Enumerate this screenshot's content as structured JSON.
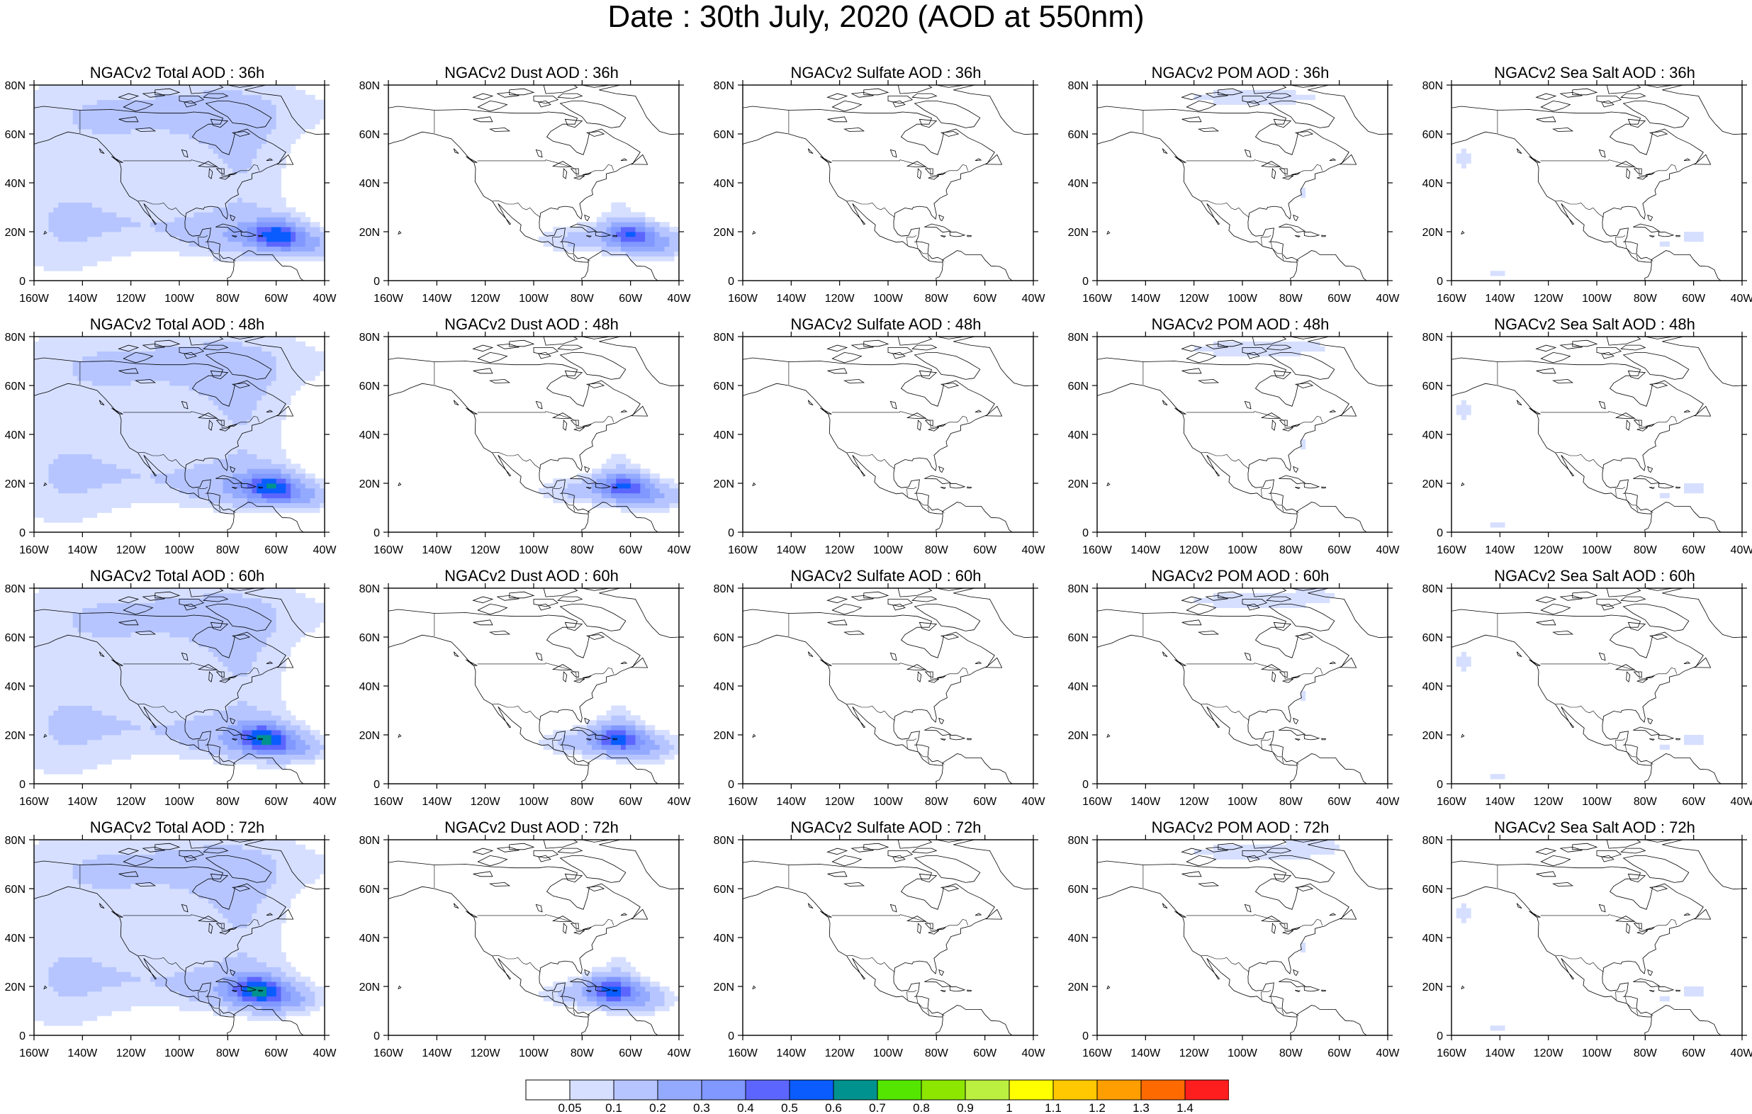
{
  "title": "Date : 30th July, 2020 (AOD at 550nm)",
  "x_ticks": [
    "160W",
    "140W",
    "120W",
    "100W",
    "80W",
    "60W",
    "40W"
  ],
  "y_ticks": [
    "80N",
    "60N",
    "40N",
    "20N",
    "0"
  ],
  "panels": [
    {
      "title": "NGACv2 Total AOD : 36h",
      "field": "total",
      "lead": 36
    },
    {
      "title": "NGACv2 Dust AOD : 36h",
      "field": "dust",
      "lead": 36
    },
    {
      "title": "NGACv2 Sulfate AOD : 36h",
      "field": "sulfate",
      "lead": 36
    },
    {
      "title": "NGACv2 POM AOD : 36h",
      "field": "pom",
      "lead": 36
    },
    {
      "title": "NGACv2 Sea Salt AOD : 36h",
      "field": "seasalt",
      "lead": 36
    },
    {
      "title": "NGACv2 Total AOD : 48h",
      "field": "total",
      "lead": 48
    },
    {
      "title": "NGACv2 Dust AOD : 48h",
      "field": "dust",
      "lead": 48
    },
    {
      "title": "NGACv2 Sulfate AOD : 48h",
      "field": "sulfate",
      "lead": 48
    },
    {
      "title": "NGACv2 POM AOD : 48h",
      "field": "pom",
      "lead": 48
    },
    {
      "title": "NGACv2 Sea Salt AOD : 48h",
      "field": "seasalt",
      "lead": 48
    },
    {
      "title": "NGACv2 Total AOD : 60h",
      "field": "total",
      "lead": 60
    },
    {
      "title": "NGACv2 Dust AOD : 60h",
      "field": "dust",
      "lead": 60
    },
    {
      "title": "NGACv2 Sulfate AOD : 60h",
      "field": "sulfate",
      "lead": 60
    },
    {
      "title": "NGACv2 POM AOD : 60h",
      "field": "pom",
      "lead": 60
    },
    {
      "title": "NGACv2 Sea Salt AOD : 60h",
      "field": "seasalt",
      "lead": 60
    },
    {
      "title": "NGACv2 Total AOD : 72h",
      "field": "total",
      "lead": 72
    },
    {
      "title": "NGACv2 Dust AOD : 72h",
      "field": "dust",
      "lead": 72
    },
    {
      "title": "NGACv2 Sulfate AOD : 72h",
      "field": "sulfate",
      "lead": 72
    },
    {
      "title": "NGACv2 POM AOD : 72h",
      "field": "pom",
      "lead": 72
    },
    {
      "title": "NGACv2 Sea Salt  AOD : 72h",
      "field": "seasalt",
      "lead": 72
    }
  ],
  "colorbar": {
    "colors": [
      "#ffffff",
      "#d6dfff",
      "#b6c5ff",
      "#94aaff",
      "#8098ff",
      "#5c66ff",
      "#0a5cff",
      "#00928e",
      "#55e600",
      "#8ce600",
      "#bbf040",
      "#ffff00",
      "#ffc800",
      "#ff9e00",
      "#ff6a00",
      "#ff1e1e"
    ],
    "labels": [
      "0.05",
      "0.1",
      "0.2",
      "0.3",
      "0.4",
      "0.5",
      "0.6",
      "0.7",
      "0.8",
      "0.9",
      "1",
      "1.1",
      "1.2",
      "1.3",
      "1.4"
    ]
  }
}
